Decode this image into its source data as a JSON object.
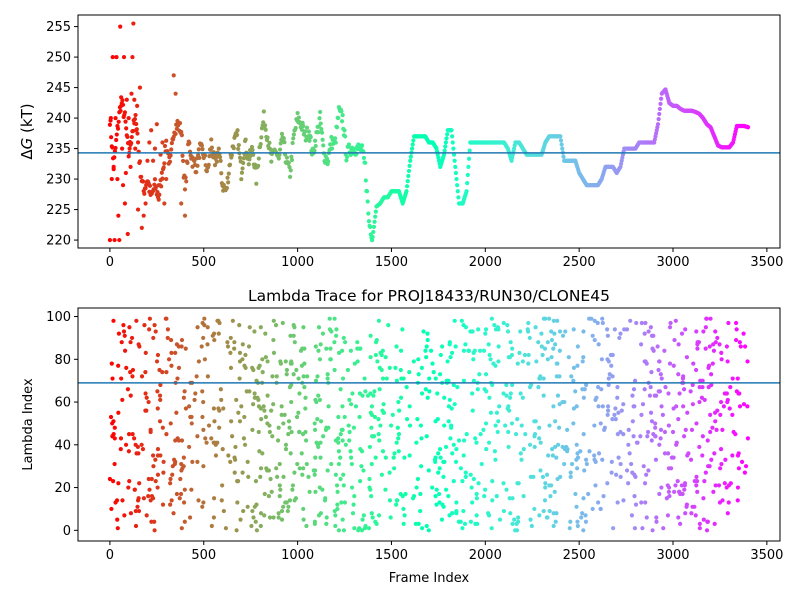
{
  "chart_data": [
    {
      "type": "scatter",
      "title": "",
      "xlabel": "",
      "ylabel_prefix": "Δ",
      "ylabel_symbol": "G",
      "ylabel_suffix": " (kT)",
      "xlim": [
        -170,
        3570
      ],
      "ylim": [
        218.7,
        256.9
      ],
      "xticks": [
        0,
        500,
        1000,
        1500,
        2000,
        2500,
        3000,
        3500
      ],
      "yticks": [
        220,
        225,
        230,
        235,
        240,
        245,
        250,
        255
      ],
      "hline": 234.3,
      "hline_color": "#1f77b4",
      "colormap": "rainbow",
      "x_max_frame": 3400,
      "grid": false,
      "series_trace": [
        [
          0,
          240
        ],
        [
          20,
          232
        ],
        [
          40,
          238
        ],
        [
          60,
          243
        ],
        [
          80,
          240
        ],
        [
          100,
          234
        ],
        [
          120,
          238
        ],
        [
          140,
          240
        ],
        [
          160,
          232
        ],
        [
          180,
          228
        ],
        [
          200,
          230
        ],
        [
          220,
          227
        ],
        [
          240,
          229
        ],
        [
          260,
          227
        ],
        [
          280,
          231
        ],
        [
          300,
          236
        ],
        [
          320,
          232
        ],
        [
          340,
          238
        ],
        [
          360,
          239
        ],
        [
          380,
          238
        ],
        [
          400,
          228
        ],
        [
          420,
          236
        ],
        [
          440,
          233
        ],
        [
          460,
          232
        ],
        [
          480,
          235
        ],
        [
          500,
          234
        ],
        [
          520,
          231
        ],
        [
          540,
          236
        ],
        [
          560,
          232
        ],
        [
          580,
          235
        ],
        [
          600,
          229
        ],
        [
          620,
          228
        ],
        [
          640,
          233
        ],
        [
          660,
          236
        ],
        [
          680,
          237
        ],
        [
          700,
          231
        ],
        [
          720,
          236
        ],
        [
          740,
          233
        ],
        [
          760,
          235
        ],
        [
          780,
          230
        ],
        [
          800,
          236
        ],
        [
          820,
          240
        ],
        [
          840,
          237
        ],
        [
          860,
          233
        ],
        [
          880,
          235
        ],
        [
          900,
          233
        ],
        [
          920,
          237
        ],
        [
          940,
          233
        ],
        [
          960,
          231
        ],
        [
          980,
          237
        ],
        [
          1000,
          240
        ],
        [
          1020,
          239
        ],
        [
          1040,
          237
        ],
        [
          1060,
          238
        ],
        [
          1080,
          234
        ],
        [
          1100,
          237
        ],
        [
          1120,
          240
        ],
        [
          1140,
          234
        ],
        [
          1160,
          233
        ],
        [
          1180,
          236
        ],
        [
          1200,
          236
        ],
        [
          1220,
          241
        ],
        [
          1240,
          240
        ],
        [
          1260,
          234
        ],
        [
          1280,
          235
        ],
        [
          1300,
          235
        ],
        [
          1320,
          235
        ],
        [
          1340,
          235
        ],
        [
          1360,
          232
        ],
        [
          1380,
          223
        ],
        [
          1400,
          220.5
        ],
        [
          1420,
          225.5
        ],
        [
          1440,
          226
        ],
        [
          1460,
          227
        ],
        [
          1480,
          227
        ],
        [
          1500,
          228
        ],
        [
          1520,
          228
        ],
        [
          1540,
          228
        ],
        [
          1560,
          226
        ],
        [
          1580,
          228
        ],
        [
          1600,
          233
        ],
        [
          1620,
          237
        ],
        [
          1640,
          237
        ],
        [
          1660,
          237
        ],
        [
          1680,
          237
        ],
        [
          1700,
          236
        ],
        [
          1720,
          236
        ],
        [
          1740,
          235
        ],
        [
          1760,
          232
        ],
        [
          1780,
          234
        ],
        [
          1800,
          238
        ],
        [
          1820,
          238
        ],
        [
          1840,
          232
        ],
        [
          1860,
          226
        ],
        [
          1880,
          226
        ],
        [
          1900,
          228
        ],
        [
          1920,
          236
        ],
        [
          1940,
          236
        ],
        [
          1960,
          236
        ],
        [
          1980,
          236
        ],
        [
          2000,
          236
        ],
        [
          2020,
          236
        ],
        [
          2040,
          236
        ],
        [
          2060,
          236
        ],
        [
          2080,
          236
        ],
        [
          2100,
          236
        ],
        [
          2120,
          235
        ],
        [
          2140,
          233
        ],
        [
          2160,
          236
        ],
        [
          2180,
          236
        ],
        [
          2200,
          235
        ],
        [
          2220,
          234
        ],
        [
          2240,
          234
        ],
        [
          2260,
          234
        ],
        [
          2280,
          234
        ],
        [
          2300,
          234
        ],
        [
          2320,
          236
        ],
        [
          2340,
          237
        ],
        [
          2360,
          237
        ],
        [
          2380,
          237
        ],
        [
          2400,
          237
        ],
        [
          2420,
          233
        ],
        [
          2440,
          233
        ],
        [
          2460,
          233
        ],
        [
          2480,
          233
        ],
        [
          2500,
          231
        ],
        [
          2520,
          230
        ],
        [
          2540,
          229
        ],
        [
          2560,
          229
        ],
        [
          2580,
          229
        ],
        [
          2600,
          229
        ],
        [
          2620,
          230
        ],
        [
          2640,
          232
        ],
        [
          2660,
          232
        ],
        [
          2680,
          232
        ],
        [
          2700,
          231
        ],
        [
          2720,
          232
        ],
        [
          2740,
          235
        ],
        [
          2760,
          235
        ],
        [
          2780,
          235
        ],
        [
          2800,
          235
        ],
        [
          2820,
          236
        ],
        [
          2840,
          236
        ],
        [
          2860,
          236
        ],
        [
          2880,
          236
        ],
        [
          2900,
          236
        ],
        [
          2920,
          239
        ],
        [
          2940,
          244
        ],
        [
          2960,
          244.7
        ],
        [
          2980,
          242.5
        ],
        [
          3000,
          242
        ],
        [
          3020,
          242
        ],
        [
          3040,
          241.5
        ],
        [
          3060,
          241.2
        ],
        [
          3080,
          241.2
        ],
        [
          3100,
          241.2
        ],
        [
          3120,
          241
        ],
        [
          3140,
          240.7
        ],
        [
          3160,
          240
        ],
        [
          3180,
          239
        ],
        [
          3200,
          238.5
        ],
        [
          3220,
          237
        ],
        [
          3240,
          235.5
        ],
        [
          3260,
          235.2
        ],
        [
          3280,
          235.2
        ],
        [
          3300,
          235.2
        ],
        [
          3320,
          236
        ],
        [
          3340,
          238.7
        ],
        [
          3360,
          238.7
        ],
        [
          3380,
          238.7
        ],
        [
          3400,
          238.5
        ]
      ],
      "series_early_points": [
        [
          0,
          220
        ],
        [
          5,
          240
        ],
        [
          10,
          230
        ],
        [
          15,
          250
        ],
        [
          20,
          232
        ],
        [
          25,
          220
        ],
        [
          30,
          240
        ],
        [
          35,
          250
        ],
        [
          40,
          230
        ],
        [
          45,
          224
        ],
        [
          50,
          220
        ],
        [
          55,
          255
        ],
        [
          60,
          242
        ],
        [
          65,
          235
        ],
        [
          70,
          229
        ],
        [
          75,
          250
        ],
        [
          80,
          226
        ],
        [
          85,
          231
        ],
        [
          90,
          243
        ],
        [
          95,
          221
        ],
        [
          100,
          240
        ],
        [
          105,
          235
        ],
        [
          110,
          232
        ],
        [
          115,
          244
        ],
        [
          120,
          250
        ],
        [
          125,
          255.5
        ],
        [
          130,
          243
        ],
        [
          135,
          235
        ],
        [
          140,
          238
        ],
        [
          145,
          242
        ],
        [
          150,
          225
        ],
        [
          160,
          245
        ],
        [
          170,
          222
        ],
        [
          180,
          224
        ],
        [
          190,
          226
        ],
        [
          200,
          233
        ],
        [
          210,
          236
        ],
        [
          220,
          238
        ],
        [
          230,
          233
        ],
        [
          240,
          235
        ],
        [
          250,
          239
        ],
        [
          260,
          229
        ],
        [
          270,
          234
        ],
        [
          280,
          236
        ],
        [
          290,
          226
        ],
        [
          300,
          230
        ],
        [
          320,
          234
        ],
        [
          340,
          247
        ],
        [
          350,
          244
        ],
        [
          360,
          239
        ],
        [
          380,
          226
        ],
        [
          400,
          224
        ]
      ]
    },
    {
      "type": "scatter",
      "title": "Lambda Trace for PROJ18433/RUN30/CLONE45",
      "xlabel": "Frame Index",
      "ylabel": "Lambda Index",
      "xlim": [
        -170,
        3570
      ],
      "ylim": [
        -5,
        104
      ],
      "xticks": [
        0,
        500,
        1000,
        1500,
        2000,
        2500,
        3000,
        3500
      ],
      "yticks": [
        0,
        20,
        40,
        60,
        80,
        100
      ],
      "hline": 69,
      "hline_color": "#1f77b4",
      "colormap": "rainbow",
      "x_max_frame": 3400,
      "grid": false,
      "lambda_min": 0,
      "lambda_max": 99,
      "n_points": 3400
    }
  ]
}
